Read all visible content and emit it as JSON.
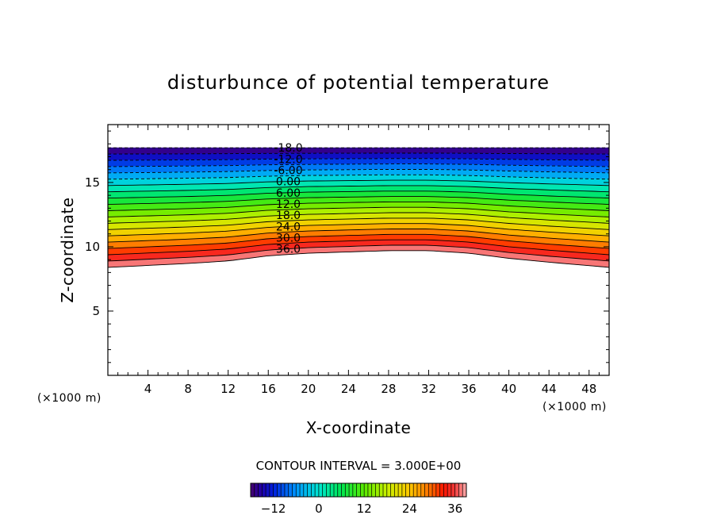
{
  "chart_data": {
    "type": "heatmap",
    "subtype": "filled-contour",
    "title": "disturbunce of potential temperature",
    "xlabel": "X-coordinate",
    "ylabel": "Z-coordinate",
    "x_unit": "(×1000 m)",
    "y_unit": "(×1000 m)",
    "xlim": [
      0,
      50
    ],
    "ylim": [
      0,
      19.5
    ],
    "x_ticks": [
      4,
      8,
      12,
      16,
      20,
      24,
      28,
      32,
      36,
      40,
      44,
      48
    ],
    "y_ticks": [
      5,
      10,
      15
    ],
    "contour_interval_text": "CONTOUR INTERVAL = 3.000E+00",
    "contour_min": -18,
    "contour_max": 39,
    "contour_step": 3,
    "field_top_z": 17.7,
    "field_bottom_profile": {
      "x": [
        0,
        8,
        12,
        16,
        20,
        24,
        28,
        32,
        36,
        40,
        44,
        50
      ],
      "z": [
        8.4,
        8.7,
        8.9,
        9.3,
        9.5,
        9.6,
        9.7,
        9.7,
        9.5,
        9.1,
        8.8,
        8.4
      ]
    },
    "contour_labels": [
      "-18.0",
      "-12.0",
      "-6.00",
      "0.00",
      "6.00",
      "12.0",
      "18.0",
      "24.0",
      "30.0",
      "36.0"
    ],
    "colorbar": {
      "range": [
        -18,
        39
      ],
      "ticks": [
        -12,
        0,
        12,
        24,
        36
      ],
      "tick_labels": [
        "−12",
        "0",
        "12",
        "24",
        "36"
      ]
    }
  }
}
